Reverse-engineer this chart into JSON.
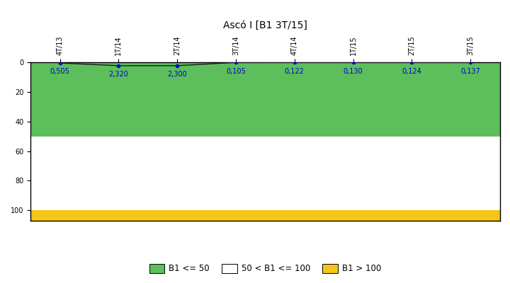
{
  "title": "Ascó I [B1 3T/15]",
  "x_labels": [
    "4T/13",
    "1T/14",
    "2T/14",
    "3T/14",
    "4T/14",
    "1T/15",
    "2T/15",
    "3T/15"
  ],
  "y_values": [
    0.505,
    2.32,
    2.3,
    0.105,
    0.122,
    0.13,
    0.124,
    0.137
  ],
  "ylim": [
    0,
    107
  ],
  "yticks": [
    0,
    20,
    40,
    60,
    80,
    100
  ],
  "green_zone": [
    0,
    50
  ],
  "white_zone": [
    50,
    100
  ],
  "yellow_zone": [
    100,
    107
  ],
  "green_color": "#5CBF5C",
  "white_color": "#FFFFFF",
  "yellow_color": "#F5C518",
  "line_color": "#1C1C1C",
  "dot_color": "#0000CC",
  "data_label_color": "#0000CC",
  "legend_labels": [
    "B1 <= 50",
    "50 < B1 <= 100",
    "B1 > 100"
  ],
  "background_color": "#FFFFFF",
  "title_fontsize": 10,
  "tick_fontsize": 7,
  "data_label_fontsize": 7
}
